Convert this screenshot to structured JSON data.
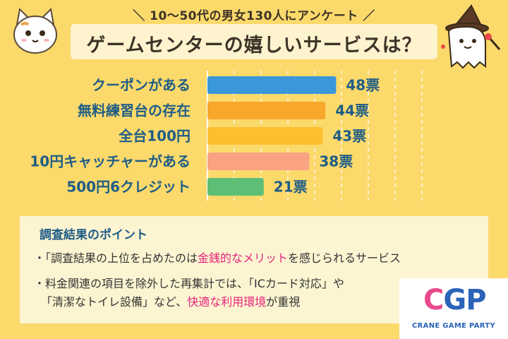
{
  "header": {
    "subtitle": "＼ 10〜50代の男女130人にアンケート ／",
    "title": "ゲームセンターの嬉しいサービスは？"
  },
  "chart_data": {
    "type": "bar",
    "orientation": "horizontal",
    "categories": [
      "クーポンがある",
      "無料練習台の存在",
      "全台100円",
      "10円キャッチャーがある",
      "500円6クレジット"
    ],
    "values": [
      48,
      44,
      43,
      38,
      21
    ],
    "value_labels": [
      "48票",
      "44票",
      "43票",
      "38票",
      "21票"
    ],
    "bar_colors": [
      "#3a97d9",
      "#f8a72a",
      "#fcc02e",
      "#f9a383",
      "#5dbf75"
    ],
    "xlim": [
      0,
      90
    ],
    "grid": true
  },
  "points": {
    "title": "調査結果のポイント",
    "bullet1": {
      "pre": "・「調査結果の上位を占めたのは",
      "highlight": "金銭的なメリット",
      "post": "を感じられるサービス"
    },
    "bullet2_line1": "・料金関連の項目を除外した再集計では、「ICカード対応」や",
    "bullet2_line2": {
      "pre": "「清潔なトイレ設備」など、",
      "highlight": "快適な利用環境",
      "post": "が重視"
    }
  },
  "logo": {
    "letter_c": "C",
    "letter_g": "G",
    "letter_p": "P",
    "sub": "CRANE GAME PARTY",
    "colors": [
      "#e84a8c",
      "#2b63b8",
      "#2b63b8"
    ]
  },
  "colors": {
    "background": "#fbd96b",
    "label_text": "#1f5d86",
    "highlight": "#e4247a"
  }
}
